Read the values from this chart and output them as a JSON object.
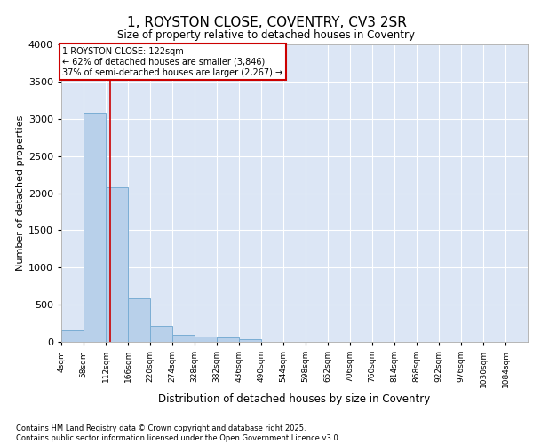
{
  "title": "1, ROYSTON CLOSE, COVENTRY, CV3 2SR",
  "subtitle": "Size of property relative to detached houses in Coventry",
  "xlabel": "Distribution of detached houses by size in Coventry",
  "ylabel": "Number of detached properties",
  "bar_color": "#b8d0ea",
  "bar_edge_color": "#7aadd4",
  "background_color": "#dce6f5",
  "grid_color": "#ffffff",
  "categories": [
    "4sqm",
    "58sqm",
    "112sqm",
    "166sqm",
    "220sqm",
    "274sqm",
    "328sqm",
    "382sqm",
    "436sqm",
    "490sqm",
    "544sqm",
    "598sqm",
    "652sqm",
    "706sqm",
    "760sqm",
    "814sqm",
    "868sqm",
    "922sqm",
    "976sqm",
    "1030sqm",
    "1084sqm"
  ],
  "bin_edges": [
    4,
    58,
    112,
    166,
    220,
    274,
    328,
    382,
    436,
    490,
    544,
    598,
    652,
    706,
    760,
    814,
    868,
    922,
    976,
    1030,
    1084
  ],
  "values": [
    155,
    3080,
    2080,
    580,
    220,
    90,
    75,
    55,
    40,
    0,
    0,
    0,
    0,
    0,
    0,
    0,
    0,
    0,
    0,
    0,
    0
  ],
  "ylim": [
    0,
    4000
  ],
  "yticks": [
    0,
    500,
    1000,
    1500,
    2000,
    2500,
    3000,
    3500,
    4000
  ],
  "property_size": 122,
  "vline_color": "#cc0000",
  "annotation_text_line1": "1 ROYSTON CLOSE: 122sqm",
  "annotation_text_line2": "← 62% of detached houses are smaller (3,846)",
  "annotation_text_line3": "37% of semi-detached houses are larger (2,267) →",
  "annotation_box_color": "#cc0000",
  "footer_line1": "Contains HM Land Registry data © Crown copyright and database right 2025.",
  "footer_line2": "Contains public sector information licensed under the Open Government Licence v3.0."
}
